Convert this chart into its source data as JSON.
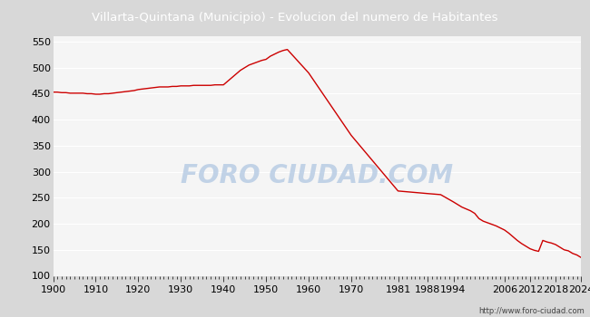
{
  "title": "Villarta-Quintana (Municipio) - Evolucion del numero de Habitantes",
  "title_bg_color": "#4a7cc7",
  "title_text_color": "#ffffff",
  "line_color": "#cc0000",
  "bg_color": "#d8d8d8",
  "plot_bg_color": "#f5f5f5",
  "grid_color": "#ffffff",
  "watermark_text": "FORO CIUDAD.COM",
  "watermark_color": "#b8cce4",
  "url_text": "http://www.foro-ciudad.com",
  "ylim": [
    100,
    560
  ],
  "yticks": [
    100,
    150,
    200,
    250,
    300,
    350,
    400,
    450,
    500,
    550
  ],
  "xtick_labels": [
    "1900",
    "1910",
    "1920",
    "1930",
    "1940",
    "1950",
    "1960",
    "1970",
    "1981",
    "1988",
    "1994",
    "2006",
    "2012",
    "2018",
    "2024"
  ],
  "years": [
    1900,
    1901,
    1902,
    1903,
    1904,
    1905,
    1906,
    1907,
    1908,
    1909,
    1910,
    1911,
    1912,
    1913,
    1914,
    1915,
    1916,
    1917,
    1918,
    1919,
    1920,
    1921,
    1922,
    1923,
    1924,
    1925,
    1926,
    1927,
    1928,
    1929,
    1930,
    1931,
    1932,
    1933,
    1934,
    1935,
    1936,
    1937,
    1938,
    1939,
    1940,
    1941,
    1942,
    1943,
    1944,
    1945,
    1946,
    1947,
    1948,
    1949,
    1950,
    1951,
    1952,
    1953,
    1954,
    1955,
    1960,
    1970,
    1981,
    1988,
    1991,
    1994,
    1996,
    1998,
    1999,
    2000,
    2001,
    2002,
    2003,
    2004,
    2005,
    2006,
    2007,
    2008,
    2009,
    2010,
    2011,
    2012,
    2013,
    2014,
    2015,
    2016,
    2017,
    2018,
    2019,
    2020,
    2021,
    2022,
    2023,
    2024
  ],
  "population": [
    453,
    453,
    452,
    452,
    451,
    451,
    451,
    451,
    450,
    450,
    449,
    449,
    450,
    450,
    451,
    452,
    453,
    454,
    455,
    456,
    458,
    459,
    460,
    461,
    462,
    463,
    463,
    463,
    464,
    464,
    465,
    465,
    465,
    466,
    466,
    466,
    466,
    466,
    467,
    467,
    467,
    474,
    481,
    488,
    495,
    500,
    505,
    508,
    511,
    514,
    516,
    522,
    526,
    530,
    533,
    535,
    490,
    370,
    263,
    258,
    256,
    242,
    232,
    225,
    220,
    210,
    205,
    202,
    199,
    196,
    192,
    188,
    182,
    175,
    168,
    162,
    157,
    152,
    149,
    147,
    168,
    165,
    163,
    160,
    155,
    150,
    148,
    143,
    140,
    135
  ]
}
